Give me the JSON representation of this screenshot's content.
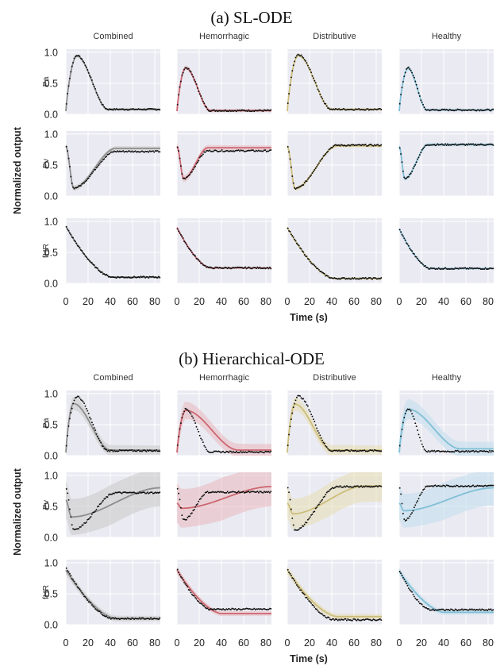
{
  "chart_data": {
    "type": "line",
    "ylabel": "Normalized output",
    "xlabel": "Time (s)",
    "columns": [
      "Combined",
      "Hemorrhagic",
      "Distributive",
      "Healthy"
    ],
    "rows": [
      "Pa",
      "Pv",
      "fHR"
    ],
    "column_colors": [
      "#8c8c8c",
      "#cc6670",
      "#ccbd7a",
      "#7fbfd6"
    ],
    "band_colors": [
      "#c8c8c8",
      "#e8b8be",
      "#e6dcb0",
      "#bfdcec"
    ],
    "observation_color": "#111111",
    "xlim": [
      0,
      85
    ],
    "ylim": [
      0,
      1.05
    ],
    "xticks": [
      0,
      20,
      40,
      60,
      80
    ],
    "xtick_labels": [
      "0",
      "20",
      "40",
      "60",
      "80"
    ],
    "yticks": [
      0.0,
      0.5,
      1.0
    ],
    "ytick_labels": [
      "0.0",
      "0.5",
      "1.0"
    ],
    "grid": true,
    "panels": [
      {
        "title": "(a) SL-ODE",
        "rows": {
          "Pa": {
            "Combined": {
              "observed": {
                "peak": 0.95,
                "peak_t": 10,
                "final": 0.08,
                "settle_t": 38
              },
              "model": {
                "peak": 0.94,
                "peak_t": 10,
                "final": 0.08,
                "settle_t": 38
              },
              "band": 0.03
            },
            "Hemorrhagic": {
              "observed": {
                "peak": 0.75,
                "peak_t": 8,
                "final": 0.06,
                "settle_t": 30
              },
              "model": {
                "peak": 0.75,
                "peak_t": 8,
                "final": 0.06,
                "settle_t": 30
              },
              "band": 0.04
            },
            "Distributive": {
              "observed": {
                "peak": 0.96,
                "peak_t": 10,
                "final": 0.08,
                "settle_t": 40
              },
              "model": {
                "peak": 0.95,
                "peak_t": 10,
                "final": 0.08,
                "settle_t": 40
              },
              "band": 0.03
            },
            "Healthy": {
              "observed": {
                "peak": 0.75,
                "peak_t": 8,
                "final": 0.07,
                "settle_t": 25
              },
              "model": {
                "peak": 0.74,
                "peak_t": 8,
                "final": 0.07,
                "settle_t": 25
              },
              "band": 0.03
            }
          },
          "Pv": {
            "Combined": {
              "observed": {
                "start": 0.8,
                "min": 0.13,
                "min_t": 7,
                "final": 0.72,
                "settle_t": 45
              },
              "model": {
                "start": 0.8,
                "min": 0.13,
                "min_t": 7,
                "final": 0.77,
                "settle_t": 45
              },
              "band": 0.05
            },
            "Hemorrhagic": {
              "observed": {
                "start": 0.8,
                "min": 0.28,
                "min_t": 6,
                "final": 0.73,
                "settle_t": 28
              },
              "model": {
                "start": 0.8,
                "min": 0.28,
                "min_t": 6,
                "final": 0.78,
                "settle_t": 28
              },
              "band": 0.06
            },
            "Distributive": {
              "observed": {
                "start": 0.8,
                "min": 0.12,
                "min_t": 7,
                "final": 0.82,
                "settle_t": 45
              },
              "model": {
                "start": 0.8,
                "min": 0.12,
                "min_t": 7,
                "final": 0.81,
                "settle_t": 45
              },
              "band": 0.04
            },
            "Healthy": {
              "observed": {
                "start": 0.8,
                "min": 0.28,
                "min_t": 5,
                "final": 0.83,
                "settle_t": 26
              },
              "model": {
                "start": 0.8,
                "min": 0.28,
                "min_t": 5,
                "final": 0.83,
                "settle_t": 26
              },
              "band": 0.04
            }
          },
          "fHR": {
            "Combined": {
              "observed": {
                "start": 0.92,
                "final": 0.1,
                "settle_t": 42
              },
              "model": {
                "start": 0.92,
                "final": 0.1,
                "settle_t": 42
              },
              "band": 0.02
            },
            "Hemorrhagic": {
              "observed": {
                "start": 0.9,
                "final": 0.25,
                "settle_t": 30
              },
              "model": {
                "start": 0.9,
                "final": 0.25,
                "settle_t": 30
              },
              "band": 0.02
            },
            "Distributive": {
              "observed": {
                "start": 0.9,
                "final": 0.08,
                "settle_t": 42
              },
              "model": {
                "start": 0.9,
                "final": 0.08,
                "settle_t": 42
              },
              "band": 0.02
            },
            "Healthy": {
              "observed": {
                "start": 0.88,
                "final": 0.24,
                "settle_t": 28
              },
              "model": {
                "start": 0.88,
                "final": 0.24,
                "settle_t": 28
              },
              "band": 0.02
            }
          }
        }
      },
      {
        "title": "(b) Hierarchical-ODE",
        "rows": {
          "Pa": {
            "Combined": {
              "observed": {
                "peak": 0.95,
                "peak_t": 10,
                "final": 0.08,
                "settle_t": 38
              },
              "model": {
                "peak": 0.84,
                "peak_t": 7,
                "final": 0.09,
                "settle_t": 40
              },
              "band": 0.12
            },
            "Hemorrhagic": {
              "observed": {
                "peak": 0.75,
                "peak_t": 8,
                "final": 0.06,
                "settle_t": 30
              },
              "model": {
                "peak": 0.73,
                "peak_t": 8,
                "final": 0.09,
                "settle_t": 55
              },
              "band": 0.16
            },
            "Distributive": {
              "observed": {
                "peak": 0.96,
                "peak_t": 10,
                "final": 0.08,
                "settle_t": 40
              },
              "model": {
                "peak": 0.83,
                "peak_t": 7,
                "final": 0.09,
                "settle_t": 40
              },
              "band": 0.12
            },
            "Healthy": {
              "observed": {
                "peak": 0.75,
                "peak_t": 8,
                "final": 0.07,
                "settle_t": 25
              },
              "model": {
                "peak": 0.75,
                "peak_t": 8,
                "final": 0.11,
                "settle_t": 55
              },
              "band": 0.18
            }
          },
          "Pv": {
            "Combined": {
              "observed": {
                "start": 0.8,
                "min": 0.13,
                "min_t": 7,
                "final": 0.72,
                "settle_t": 45
              },
              "model": {
                "start": 0.6,
                "min": 0.33,
                "min_t": 5,
                "final": 0.8,
                "settle_t": 85
              },
              "band": 0.3
            },
            "Hemorrhagic": {
              "observed": {
                "start": 0.8,
                "min": 0.28,
                "min_t": 6,
                "final": 0.73,
                "settle_t": 28
              },
              "model": {
                "start": 0.55,
                "min": 0.47,
                "min_t": 4,
                "final": 0.82,
                "settle_t": 85
              },
              "band": 0.32
            },
            "Distributive": {
              "observed": {
                "start": 0.8,
                "min": 0.12,
                "min_t": 7,
                "final": 0.82,
                "settle_t": 45
              },
              "model": {
                "start": 0.55,
                "min": 0.38,
                "min_t": 5,
                "final": 0.83,
                "settle_t": 70
              },
              "band": 0.25
            },
            "Healthy": {
              "observed": {
                "start": 0.8,
                "min": 0.28,
                "min_t": 5,
                "final": 0.83,
                "settle_t": 26
              },
              "model": {
                "start": 0.55,
                "min": 0.43,
                "min_t": 4,
                "final": 0.8,
                "settle_t": 85
              },
              "band": 0.28
            }
          },
          "fHR": {
            "Combined": {
              "observed": {
                "start": 0.92,
                "final": 0.1,
                "settle_t": 42
              },
              "model": {
                "start": 0.88,
                "final": 0.1,
                "settle_t": 45
              },
              "band": 0.07
            },
            "Hemorrhagic": {
              "observed": {
                "start": 0.9,
                "final": 0.25,
                "settle_t": 30
              },
              "model": {
                "start": 0.88,
                "final": 0.18,
                "settle_t": 40
              },
              "band": 0.06
            },
            "Distributive": {
              "observed": {
                "start": 0.9,
                "final": 0.08,
                "settle_t": 42
              },
              "model": {
                "start": 0.88,
                "final": 0.13,
                "settle_t": 45
              },
              "band": 0.07
            },
            "Healthy": {
              "observed": {
                "start": 0.88,
                "final": 0.24,
                "settle_t": 28
              },
              "model": {
                "start": 0.86,
                "final": 0.2,
                "settle_t": 40
              },
              "band": 0.06
            }
          }
        }
      }
    ]
  }
}
